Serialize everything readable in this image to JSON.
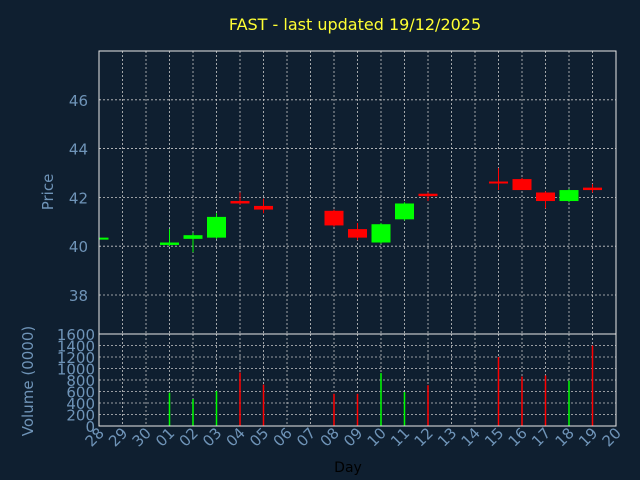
{
  "chart_data": [
    {
      "type": "candlestick",
      "title": "FAST - last updated 19/12/2025",
      "ylabel": "Price",
      "ylim": [
        36.4,
        48.0
      ],
      "yticks": [
        38,
        40,
        42,
        44,
        46
      ],
      "grid": true,
      "colors": {
        "up": "#00ff00",
        "down": "#ff0000"
      },
      "candles": [
        {
          "day": "28",
          "open": 40.35,
          "high": 40.4,
          "low": 40.3,
          "close": 40.35
        },
        {
          "day": "01",
          "open": 40.05,
          "high": 40.7,
          "low": 40.0,
          "close": 40.15
        },
        {
          "day": "02",
          "open": 40.3,
          "high": 40.55,
          "low": 39.75,
          "close": 40.45
        },
        {
          "day": "03",
          "open": 40.35,
          "high": 41.35,
          "low": 40.3,
          "close": 41.2
        },
        {
          "day": "04",
          "open": 41.85,
          "high": 42.2,
          "low": 41.7,
          "close": 41.75
        },
        {
          "day": "05",
          "open": 41.65,
          "high": 41.95,
          "low": 41.35,
          "close": 41.5
        },
        {
          "day": "08",
          "open": 41.45,
          "high": 41.5,
          "low": 40.8,
          "close": 40.85
        },
        {
          "day": "09",
          "open": 40.7,
          "high": 40.95,
          "low": 40.25,
          "close": 40.35
        },
        {
          "day": "10",
          "open": 40.15,
          "high": 40.95,
          "low": 40.1,
          "close": 40.9
        },
        {
          "day": "11",
          "open": 41.1,
          "high": 41.8,
          "low": 41.05,
          "close": 41.75
        },
        {
          "day": "12",
          "open": 42.15,
          "high": 42.2,
          "low": 41.85,
          "close": 42.05
        },
        {
          "day": "15",
          "open": 42.65,
          "high": 43.2,
          "low": 42.3,
          "close": 42.6
        },
        {
          "day": "16",
          "open": 42.75,
          "high": 42.8,
          "low": 42.3,
          "close": 42.3
        },
        {
          "day": "17",
          "open": 42.2,
          "high": 42.25,
          "low": 41.55,
          "close": 41.85
        },
        {
          "day": "18",
          "open": 41.85,
          "high": 42.35,
          "low": 41.8,
          "close": 42.3
        },
        {
          "day": "19",
          "open": 42.4,
          "high": 42.55,
          "low": 42.2,
          "close": 42.3
        }
      ]
    },
    {
      "type": "bar",
      "ylabel": "Volume (0000)",
      "ylim": [
        0,
        1600
      ],
      "yticks": [
        0,
        200,
        400,
        600,
        800,
        1000,
        1200,
        1400,
        1600
      ],
      "grid": true,
      "xlabel": "Day",
      "categories": [
        "28",
        "29",
        "30",
        "01",
        "02",
        "03",
        "04",
        "05",
        "06",
        "07",
        "08",
        "09",
        "10",
        "11",
        "12",
        "13",
        "14",
        "15",
        "16",
        "17",
        "18",
        "19",
        "20"
      ],
      "bars": [
        {
          "day": "01",
          "value": 580,
          "direction": "up"
        },
        {
          "day": "02",
          "value": 470,
          "direction": "up"
        },
        {
          "day": "03",
          "value": 610,
          "direction": "up"
        },
        {
          "day": "04",
          "value": 930,
          "direction": "down"
        },
        {
          "day": "05",
          "value": 720,
          "direction": "down"
        },
        {
          "day": "08",
          "value": 560,
          "direction": "down"
        },
        {
          "day": "09",
          "value": 560,
          "direction": "down"
        },
        {
          "day": "10",
          "value": 920,
          "direction": "up"
        },
        {
          "day": "11",
          "value": 590,
          "direction": "up"
        },
        {
          "day": "12",
          "value": 710,
          "direction": "down"
        },
        {
          "day": "15",
          "value": 1200,
          "direction": "down"
        },
        {
          "day": "16",
          "value": 860,
          "direction": "down"
        },
        {
          "day": "17",
          "value": 880,
          "direction": "down"
        },
        {
          "day": "18",
          "value": 790,
          "direction": "up"
        },
        {
          "day": "19",
          "value": 1400,
          "direction": "down"
        }
      ]
    }
  ]
}
